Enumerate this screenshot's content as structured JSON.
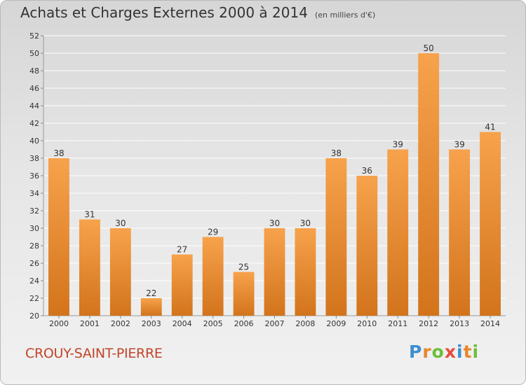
{
  "header": {
    "title": "Achats et Charges Externes 2000 à 2014",
    "subtitle": "(en milliers d'€)"
  },
  "footer": {
    "commune": "CROUY-SAINT-PIERRE",
    "logo_letters": [
      "P",
      "r",
      "o",
      "x",
      "i",
      "t",
      "i"
    ],
    "logo_colors": [
      "#3a8fd0",
      "#e8862a",
      "#6bbf3a",
      "#e84c3d",
      "#3a8fd0",
      "#e8862a",
      "#6bbf3a"
    ]
  },
  "colors": {
    "bar_light": "#f7a24c",
    "bar_dark": "#d2741c",
    "grid": "#ffffff",
    "commune": "#c0452a"
  },
  "chart_data": {
    "type": "bar",
    "categories": [
      "2000",
      "2001",
      "2002",
      "2003",
      "2004",
      "2005",
      "2006",
      "2007",
      "2008",
      "2009",
      "2010",
      "2011",
      "2012",
      "2013",
      "2014"
    ],
    "values": [
      38,
      31,
      30,
      22,
      27,
      29,
      25,
      30,
      30,
      38,
      36,
      39,
      50,
      39,
      41
    ],
    "ylim": [
      20,
      52
    ],
    "yticks": [
      20,
      22,
      24,
      26,
      28,
      30,
      32,
      34,
      36,
      38,
      40,
      42,
      44,
      46,
      48,
      50,
      52
    ],
    "grid": true,
    "data_labels": true
  }
}
